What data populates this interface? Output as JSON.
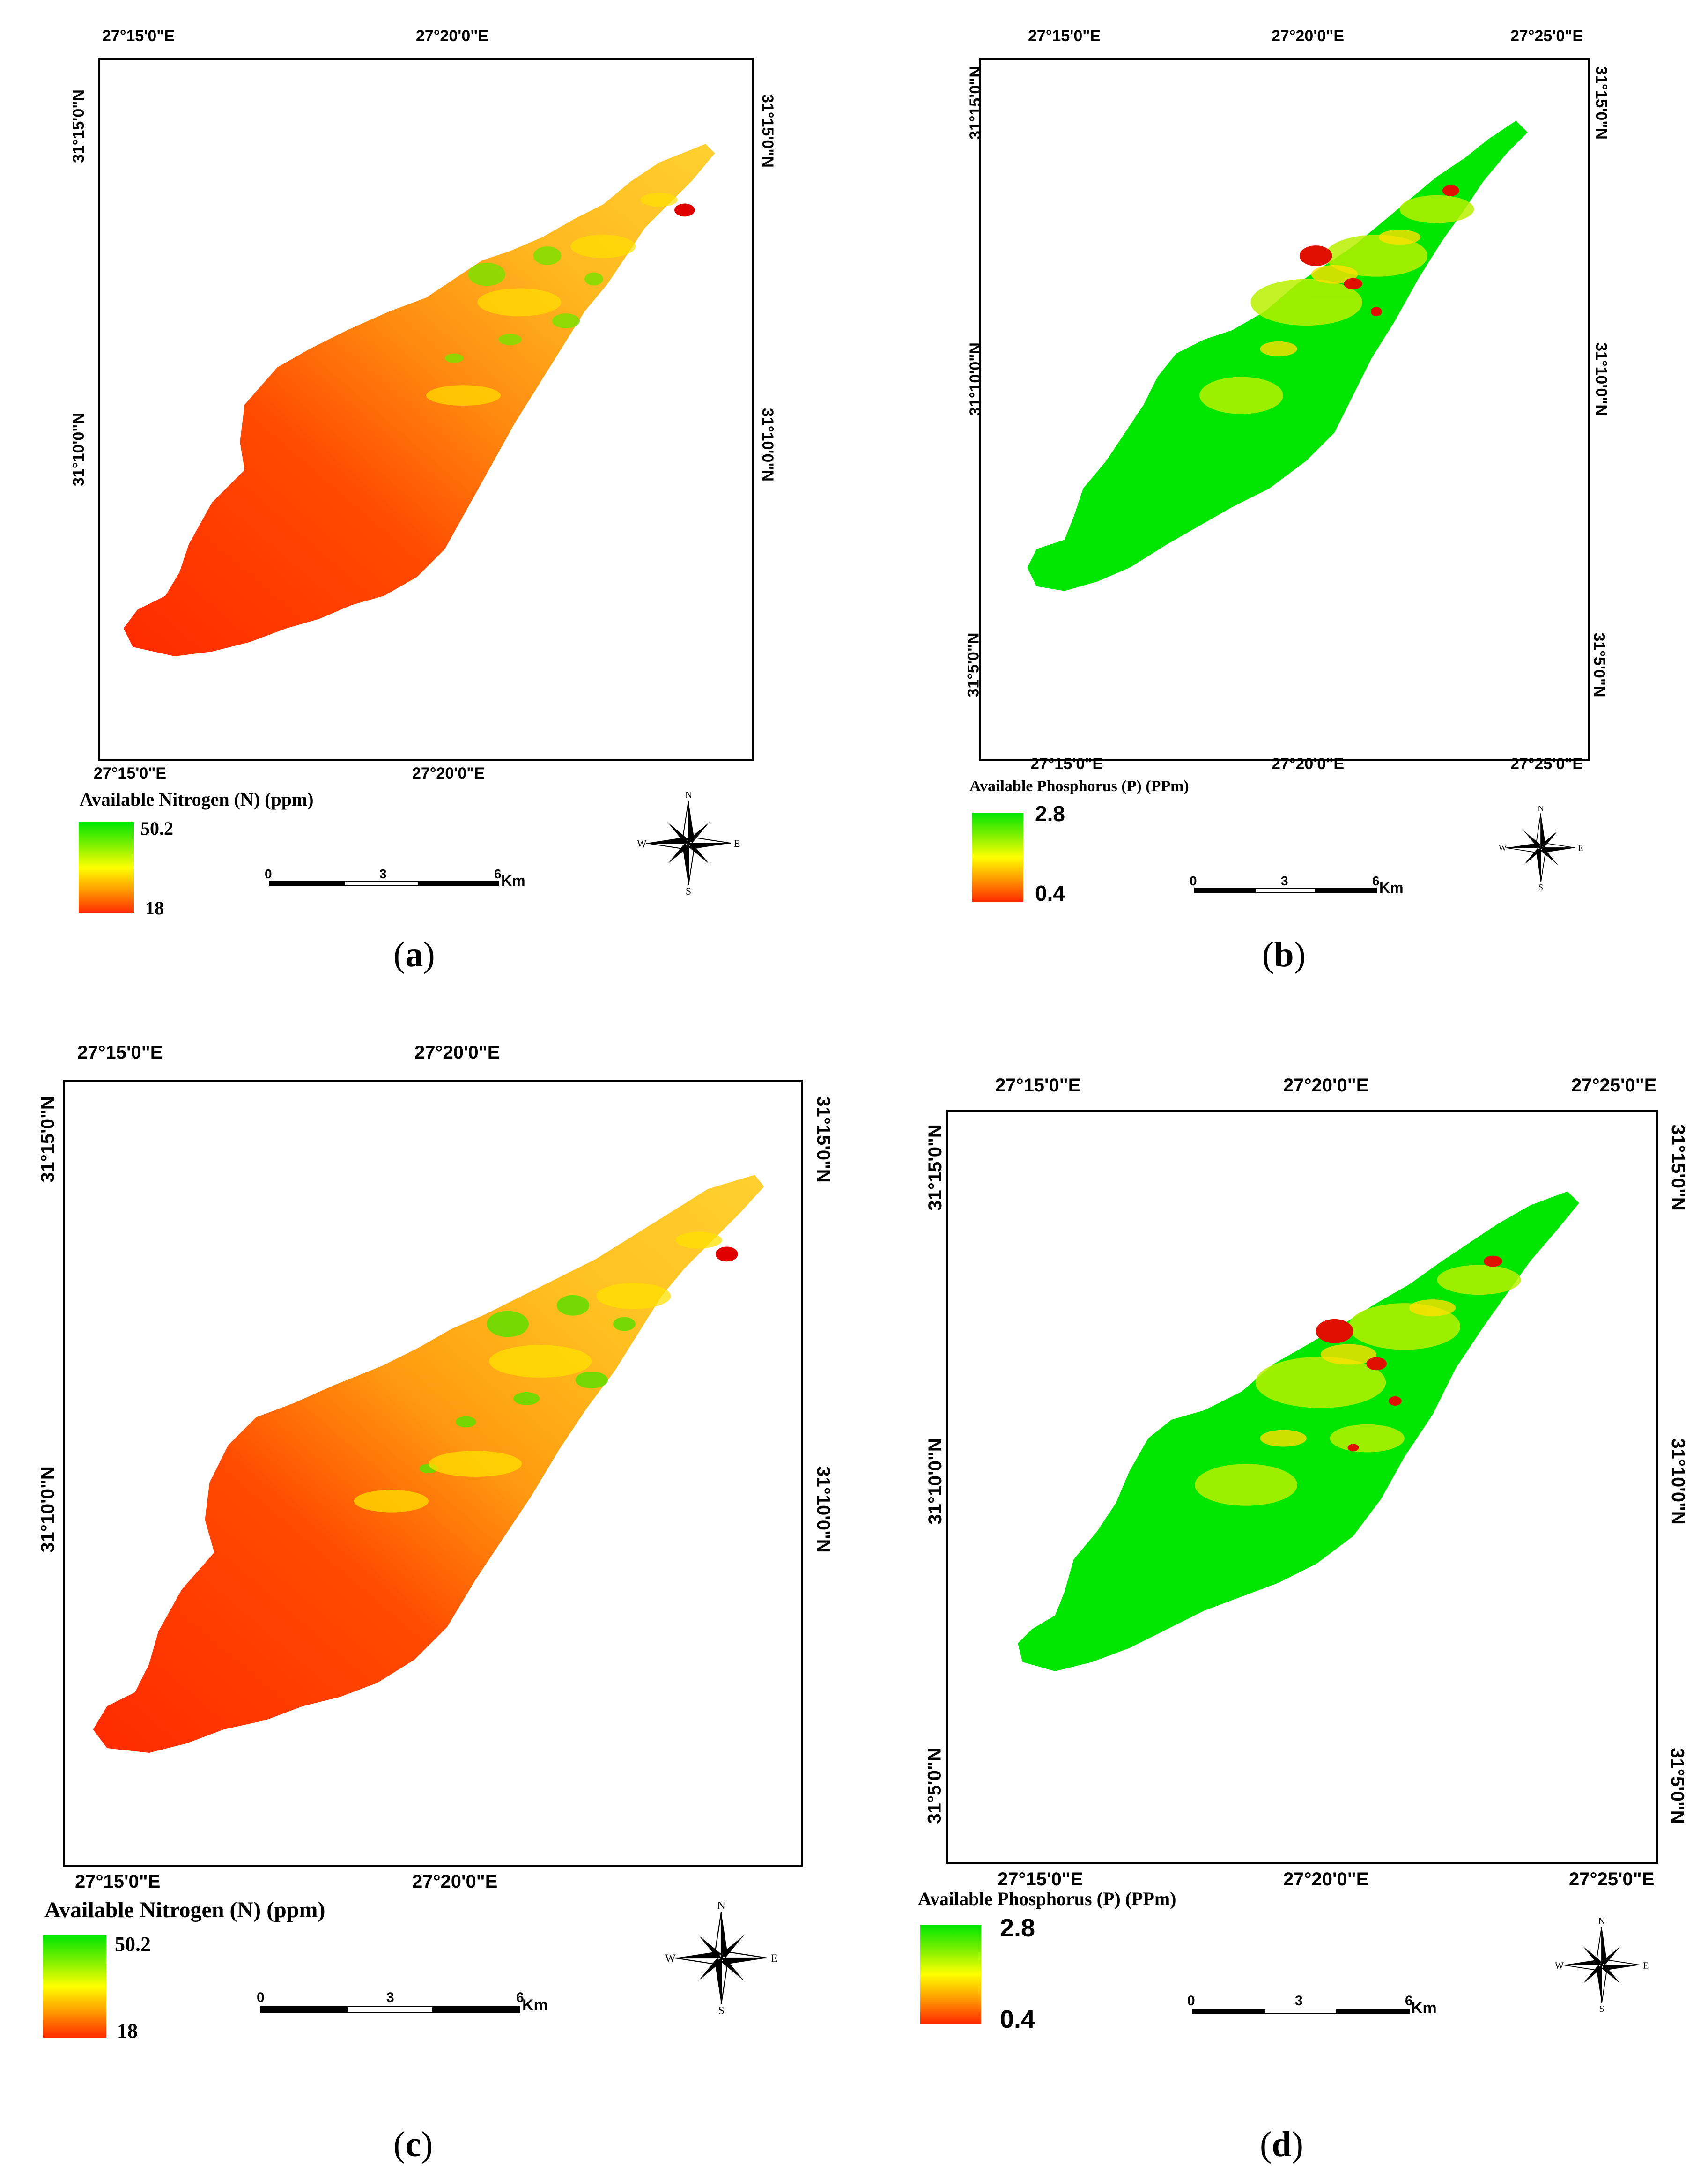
{
  "panels": [
    {
      "id": "a",
      "caption_open": "(",
      "caption_letter": "a",
      "caption_close": ")",
      "top_ticks": [
        "27°15'0\"E",
        "27°20'0\"E"
      ],
      "bottom_ticks": [
        "27°15'0\"E",
        "27°20'0\"E"
      ],
      "left_ticks": [
        "31°15'0\"N",
        "31°10'0\"N"
      ],
      "right_ticks": [
        "31°15'0\"N",
        "31°10'0\"N"
      ],
      "legend_title": "Available Nitrogen (N) (ppm)",
      "legend_max": "50.2",
      "legend_min": "18",
      "scale_labels": [
        "0",
        "3",
        "6"
      ],
      "scale_unit": "Km",
      "compass": {
        "n": "N",
        "s": "S",
        "e": "E",
        "w": "W"
      }
    },
    {
      "id": "b",
      "caption_open": "(",
      "caption_letter": "b",
      "caption_close": ")",
      "top_ticks": [
        "27°15'0\"E",
        "27°20'0\"E",
        "27°25'0\"E"
      ],
      "bottom_ticks": [
        "27°15'0\"E",
        "27°20'0\"E",
        "27°25'0\"E"
      ],
      "left_ticks": [
        "31°15'0\"N",
        "31°10'0\"N",
        "31°5'0\"N"
      ],
      "right_ticks": [
        "31°15'0\"N",
        "31°10'0\"N",
        "31°5'0\"N"
      ],
      "legend_title": "Available Phosphorus (P) (PPm)",
      "legend_max": "2.8",
      "legend_min": "0.4",
      "scale_labels": [
        "0",
        "3",
        "6"
      ],
      "scale_unit": "Km",
      "compass": {
        "n": "N",
        "s": "S",
        "e": "E",
        "w": "W"
      }
    },
    {
      "id": "c",
      "caption_open": "(",
      "caption_letter": "c",
      "caption_close": ")",
      "top_ticks": [
        "27°15'0\"E",
        "27°20'0\"E"
      ],
      "bottom_ticks": [
        "27°15'0\"E",
        "27°20'0\"E"
      ],
      "left_ticks": [
        "31°15'0\"N",
        "31°10'0\"N"
      ],
      "right_ticks": [
        "31°15'0\"N",
        "31°10'0\"N"
      ],
      "legend_title": "Available Nitrogen (N) (ppm)",
      "legend_max": "50.2",
      "legend_min": "18",
      "scale_labels": [
        "0",
        "3",
        "6"
      ],
      "scale_unit": "Km",
      "compass": {
        "n": "N",
        "s": "S",
        "e": "E",
        "w": "W"
      }
    },
    {
      "id": "d",
      "caption_open": "(",
      "caption_letter": "d",
      "caption_close": ")",
      "top_ticks": [
        "27°15'0\"E",
        "27°20'0\"E",
        "27°25'0\"E"
      ],
      "bottom_ticks": [
        "27°15'0\"E",
        "27°20'0\"E",
        "27°25'0\"E"
      ],
      "left_ticks": [
        "31°15'0\"N",
        "31°10'0\"N",
        "31°5'0\"N"
      ],
      "right_ticks": [
        "31°15'0\"N",
        "31°10'0\"N",
        "31°5'0\"N"
      ],
      "legend_title": "Available Phosphorus (P) (PPm)",
      "legend_max": "2.8",
      "legend_min": "0.4",
      "scale_labels": [
        "0",
        "3",
        "6"
      ],
      "scale_unit": "Km",
      "compass": {
        "n": "N",
        "s": "S",
        "e": "E",
        "w": "W"
      }
    }
  ],
  "colors": {
    "high": "#00e600",
    "mid_high": "#b8f000",
    "mid": "#ffff00",
    "mid_low": "#ff9900",
    "low": "#ff2a00"
  }
}
